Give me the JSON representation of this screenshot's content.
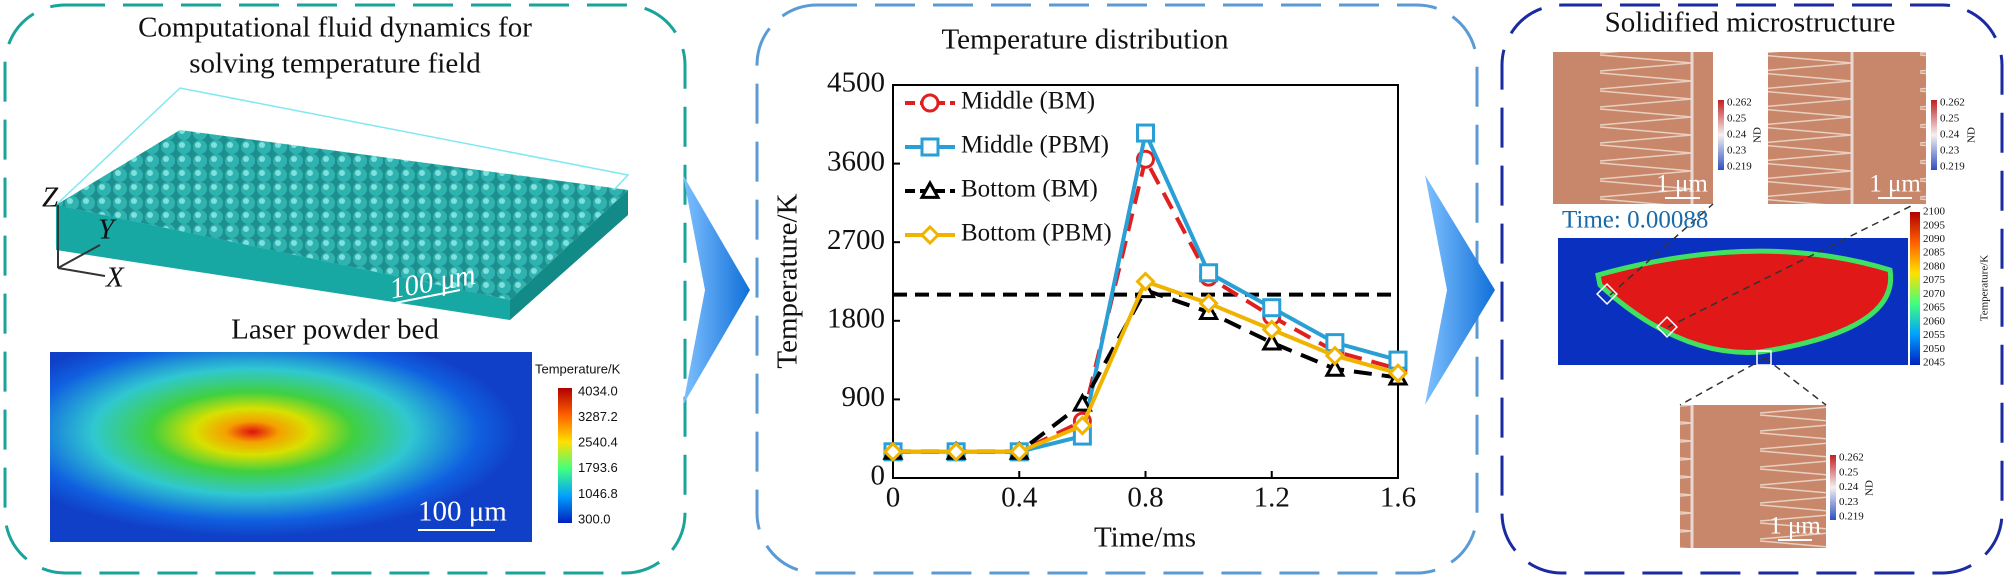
{
  "left": {
    "title_lines": [
      "Computational fluid dynamics for",
      "solving temperature field"
    ],
    "axis_letters": [
      "Z",
      "Y",
      "X"
    ],
    "scale_top": "100 μm",
    "subtitle": "Laser powder bed",
    "colorbar_title": "Temperature/K",
    "colorbar_labels": [
      "4034.0",
      "3287.2",
      "2540.4",
      "1793.6",
      "1046.8",
      "300.0"
    ],
    "scale_bottom": "100 μm"
  },
  "chart_data": {
    "type": "line",
    "title": "Temperature distribution",
    "x_label": "Time/ms",
    "y_label": "Temperature/K",
    "x": [
      0,
      0.2,
      0.4,
      0.6,
      0.8,
      1.0,
      1.2,
      1.4,
      1.6
    ],
    "series": [
      {
        "name": "Middle (BM)",
        "color": "#e02020",
        "dashed": true,
        "marker": "circle",
        "values": [
          300,
          300,
          300,
          650,
          3650,
          2300,
          1850,
          1450,
          1250
        ]
      },
      {
        "name": "Middle (PBM)",
        "color": "#2a9fd6",
        "dashed": false,
        "marker": "square",
        "values": [
          300,
          300,
          300,
          480,
          3950,
          2350,
          1950,
          1550,
          1350
        ]
      },
      {
        "name": "Bottom (BM)",
        "color": "#000000",
        "dashed": true,
        "marker": "triangle",
        "values": [
          300,
          300,
          300,
          850,
          2150,
          1900,
          1550,
          1250,
          1150
        ]
      },
      {
        "name": "Bottom (PBM)",
        "color": "#f0b400",
        "dashed": false,
        "marker": "diamond",
        "values": [
          300,
          300,
          300,
          600,
          2250,
          2000,
          1700,
          1400,
          1200
        ]
      }
    ],
    "reference_line": 2100,
    "xlim": [
      0,
      1.6
    ],
    "ylim": [
      0,
      4500
    ],
    "xticks": [
      0,
      0.4,
      0.8,
      1.2,
      1.6
    ],
    "yticks": [
      0,
      900,
      1800,
      2700,
      3600,
      4500
    ],
    "grid": false,
    "legend": "upper left"
  },
  "right": {
    "title": "Solidified microstructure",
    "time_label": "Time: 0.00088",
    "colorbar_title": "Temperature/K",
    "colorbar_labels": [
      "2100",
      "2095",
      "2090",
      "2085",
      "2080",
      "2075",
      "2070",
      "2065",
      "2060",
      "2055",
      "2050",
      "2045"
    ],
    "nd_labels": [
      "0.262",
      "0.25",
      "0.24",
      "0.23",
      "0.219"
    ],
    "nd_title": "ND",
    "scale": "1 μm"
  }
}
